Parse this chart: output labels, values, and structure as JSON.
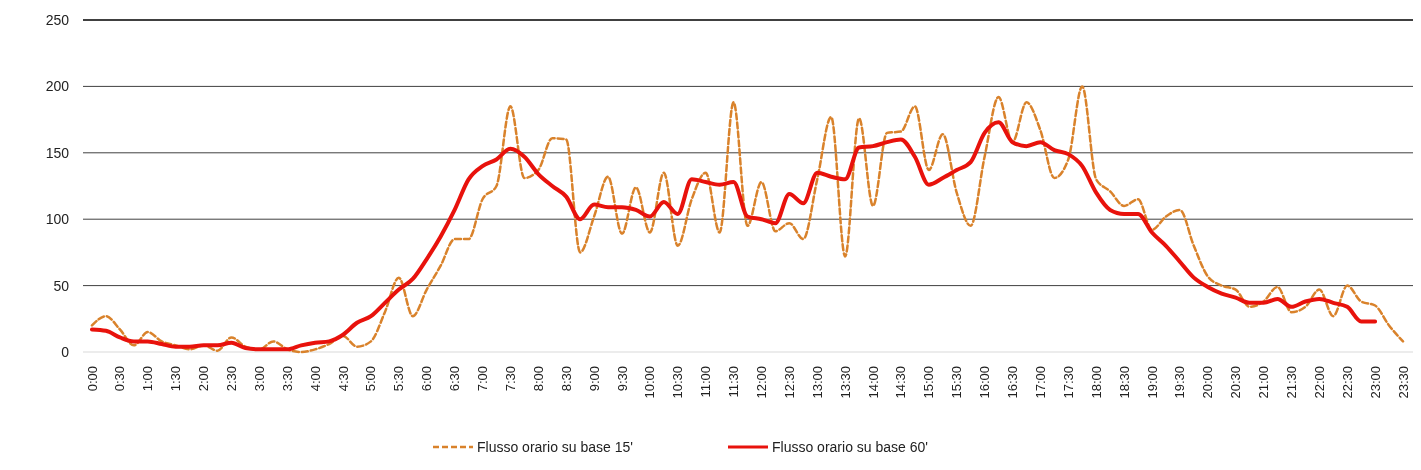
{
  "chart_data": {
    "type": "line",
    "categories": [
      "0:00",
      null,
      "0:30",
      null,
      "1:00",
      null,
      "1:30",
      null,
      "2:00",
      null,
      "2:30",
      null,
      "3:00",
      null,
      "3:30",
      null,
      "4:00",
      null,
      "4:30",
      null,
      "5:00",
      null,
      "5:30",
      null,
      "6:00",
      null,
      "6:30",
      null,
      "7:00",
      null,
      "7:30",
      null,
      "8:00",
      null,
      "8:30",
      null,
      "9:00",
      null,
      "9:30",
      null,
      "10:00",
      null,
      "10:30",
      null,
      "11:00",
      null,
      "11:30",
      null,
      "12:00",
      null,
      "12:30",
      null,
      "13:00",
      null,
      "13:30",
      null,
      "14:00",
      null,
      "14:30",
      null,
      "15:00",
      null,
      "15:30",
      null,
      "16:00",
      null,
      "16:30",
      null,
      "17:00",
      null,
      "17:30",
      null,
      "18:00",
      null,
      "18:30",
      null,
      "19:00",
      null,
      "19:30",
      null,
      "20:00",
      null,
      "20:30",
      null,
      "21:00",
      null,
      "21:30",
      null,
      "22:00",
      null,
      "22:30",
      null,
      "23:00",
      null,
      "23:30"
    ],
    "series": [
      {
        "name": "Flusso orario su base 15'",
        "color": "#d9822b",
        "line_style": "dashed",
        "values": [
          20,
          27,
          17,
          5,
          15,
          8,
          5,
          2,
          5,
          1,
          11,
          4,
          2,
          8,
          2,
          0,
          2,
          6,
          12,
          4,
          8,
          30,
          56,
          27,
          47,
          65,
          85,
          85,
          115,
          125,
          185,
          131,
          137,
          161,
          160,
          75,
          102,
          132,
          89,
          124,
          90,
          135,
          80,
          115,
          135,
          90,
          188,
          95,
          128,
          91,
          97,
          85,
          130,
          177,
          72,
          176,
          110,
          165,
          166,
          185,
          137,
          164,
          120,
          95,
          147,
          192,
          158,
          188,
          167,
          131,
          145,
          200,
          130,
          121,
          110,
          115,
          92,
          102,
          107,
          80,
          57,
          50,
          47,
          34,
          38,
          49,
          30,
          34,
          47,
          27,
          50,
          38,
          35,
          20,
          8
        ]
      },
      {
        "name": "Flusso orario su base 60'",
        "color": "#e8120c",
        "line_style": "solid",
        "values": [
          17,
          16,
          11,
          8,
          8,
          6,
          4,
          4,
          5,
          5,
          7,
          3,
          2,
          2,
          2,
          5,
          7,
          8,
          13,
          22,
          27,
          37,
          47,
          55,
          70,
          87,
          107,
          130,
          140,
          145,
          153,
          147,
          134,
          125,
          117,
          100,
          111,
          109,
          109,
          107,
          102,
          113,
          104,
          130,
          128,
          126,
          128,
          102,
          100,
          97,
          119,
          112,
          135,
          132,
          130,
          154,
          155,
          158,
          160,
          147,
          126,
          131,
          137,
          143,
          165,
          173,
          158,
          155,
          158,
          152,
          149,
          140,
          120,
          107,
          104,
          104,
          90,
          80,
          68,
          56,
          49,
          44,
          41,
          37,
          37,
          40,
          34,
          38,
          40,
          37,
          34,
          23,
          23,
          null,
          null
        ]
      }
    ],
    "ylim": [
      0,
      250
    ],
    "yticks": [
      0,
      50,
      100,
      150,
      200,
      250
    ],
    "grid": "y",
    "legend": "bottom"
  }
}
